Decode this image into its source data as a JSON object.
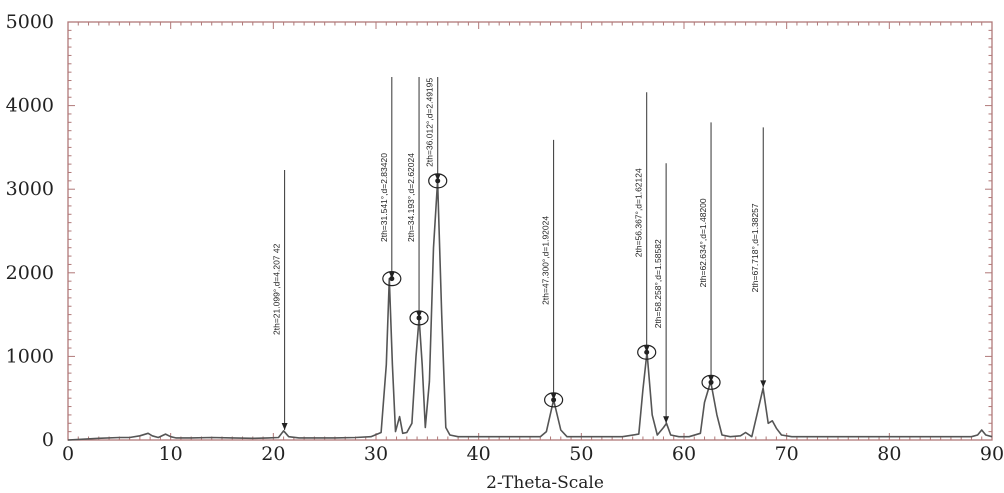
{
  "chart_data": {
    "type": "line",
    "title": "",
    "xlabel": "2-Theta-Scale",
    "ylabel": "",
    "xlim": [
      0,
      90
    ],
    "ylim": [
      0,
      5000
    ],
    "x_ticks": [
      0,
      10,
      20,
      30,
      40,
      50,
      60,
      70,
      80,
      90
    ],
    "y_ticks": [
      0,
      1000,
      2000,
      3000,
      4000,
      5000
    ],
    "grid": false,
    "frame_color": "#b07878",
    "line_color": "#555555",
    "series": [
      {
        "x": [
          0,
          3,
          5,
          6,
          7,
          7.8,
          8.2,
          8.8,
          9.5,
          10,
          10.5,
          12,
          14,
          16,
          18,
          19.5,
          20.5,
          21.0,
          21.5,
          22.5,
          24,
          26,
          28,
          29.5,
          30.5,
          31.0,
          31.3,
          31.6,
          31.9,
          32.3,
          32.6,
          33.0,
          33.5,
          33.9,
          34.2,
          34.5,
          34.8,
          35.2,
          35.6,
          36.0,
          36.4,
          36.8,
          37.2,
          38,
          40,
          42,
          44,
          46,
          46.6,
          47.3,
          48.0,
          48.6,
          50,
          52,
          54,
          55.6,
          56.0,
          56.4,
          56.9,
          57.4,
          58.0,
          58.3,
          58.7,
          59.5,
          60.5,
          61.6,
          62.0,
          62.6,
          63.2,
          63.7,
          64.5,
          65.5,
          66.0,
          66.6,
          67.1,
          67.7,
          68.2,
          68.6,
          69.0,
          69.5,
          70.5,
          72,
          74,
          76,
          78,
          80,
          82,
          84,
          86,
          88,
          88.6,
          89.0,
          89.4,
          90
        ],
        "y": [
          0,
          20,
          30,
          30,
          50,
          80,
          50,
          30,
          70,
          40,
          25,
          25,
          30,
          25,
          20,
          25,
          30,
          110,
          40,
          25,
          25,
          25,
          30,
          40,
          90,
          900,
          1930,
          900,
          100,
          280,
          80,
          90,
          200,
          1000,
          1460,
          900,
          150,
          700,
          2300,
          3100,
          1500,
          150,
          60,
          40,
          40,
          40,
          40,
          40,
          100,
          480,
          120,
          40,
          40,
          40,
          40,
          70,
          600,
          1050,
          300,
          60,
          150,
          200,
          60,
          40,
          40,
          80,
          450,
          700,
          300,
          60,
          40,
          50,
          90,
          40,
          300,
          620,
          200,
          230,
          140,
          60,
          40,
          40,
          40,
          40,
          40,
          40,
          40,
          40,
          40,
          40,
          60,
          120,
          60,
          40
        ]
      }
    ],
    "peak_annotations": [
      {
        "x": 21.099,
        "y": 120,
        "label": "2th=21.099°,d=4.207 42",
        "circled": false
      },
      {
        "x": 31.541,
        "y": 1930,
        "label": "2th=31.541°,d=2.83420",
        "circled": true
      },
      {
        "x": 34.193,
        "y": 1460,
        "label": "2th=34.193°,d=2.62024",
        "circled": true
      },
      {
        "x": 36.012,
        "y": 3100,
        "label": "2th=36.012°,d=2.49195",
        "circled": true
      },
      {
        "x": 47.3,
        "y": 480,
        "label": "2th=47.300°,d=1.92024",
        "circled": true
      },
      {
        "x": 56.367,
        "y": 1050,
        "label": "2th=56.367°,d=1.62124",
        "circled": true
      },
      {
        "x": 58.258,
        "y": 200,
        "label": "2th=58.258°,d=1.58582",
        "circled": false
      },
      {
        "x": 62.634,
        "y": 690,
        "label": "2th=62.634°,d=1.48200",
        "circled": true
      },
      {
        "x": 67.718,
        "y": 630,
        "label": "2th=67.718°,d=1.38257",
        "circled": false
      }
    ]
  }
}
